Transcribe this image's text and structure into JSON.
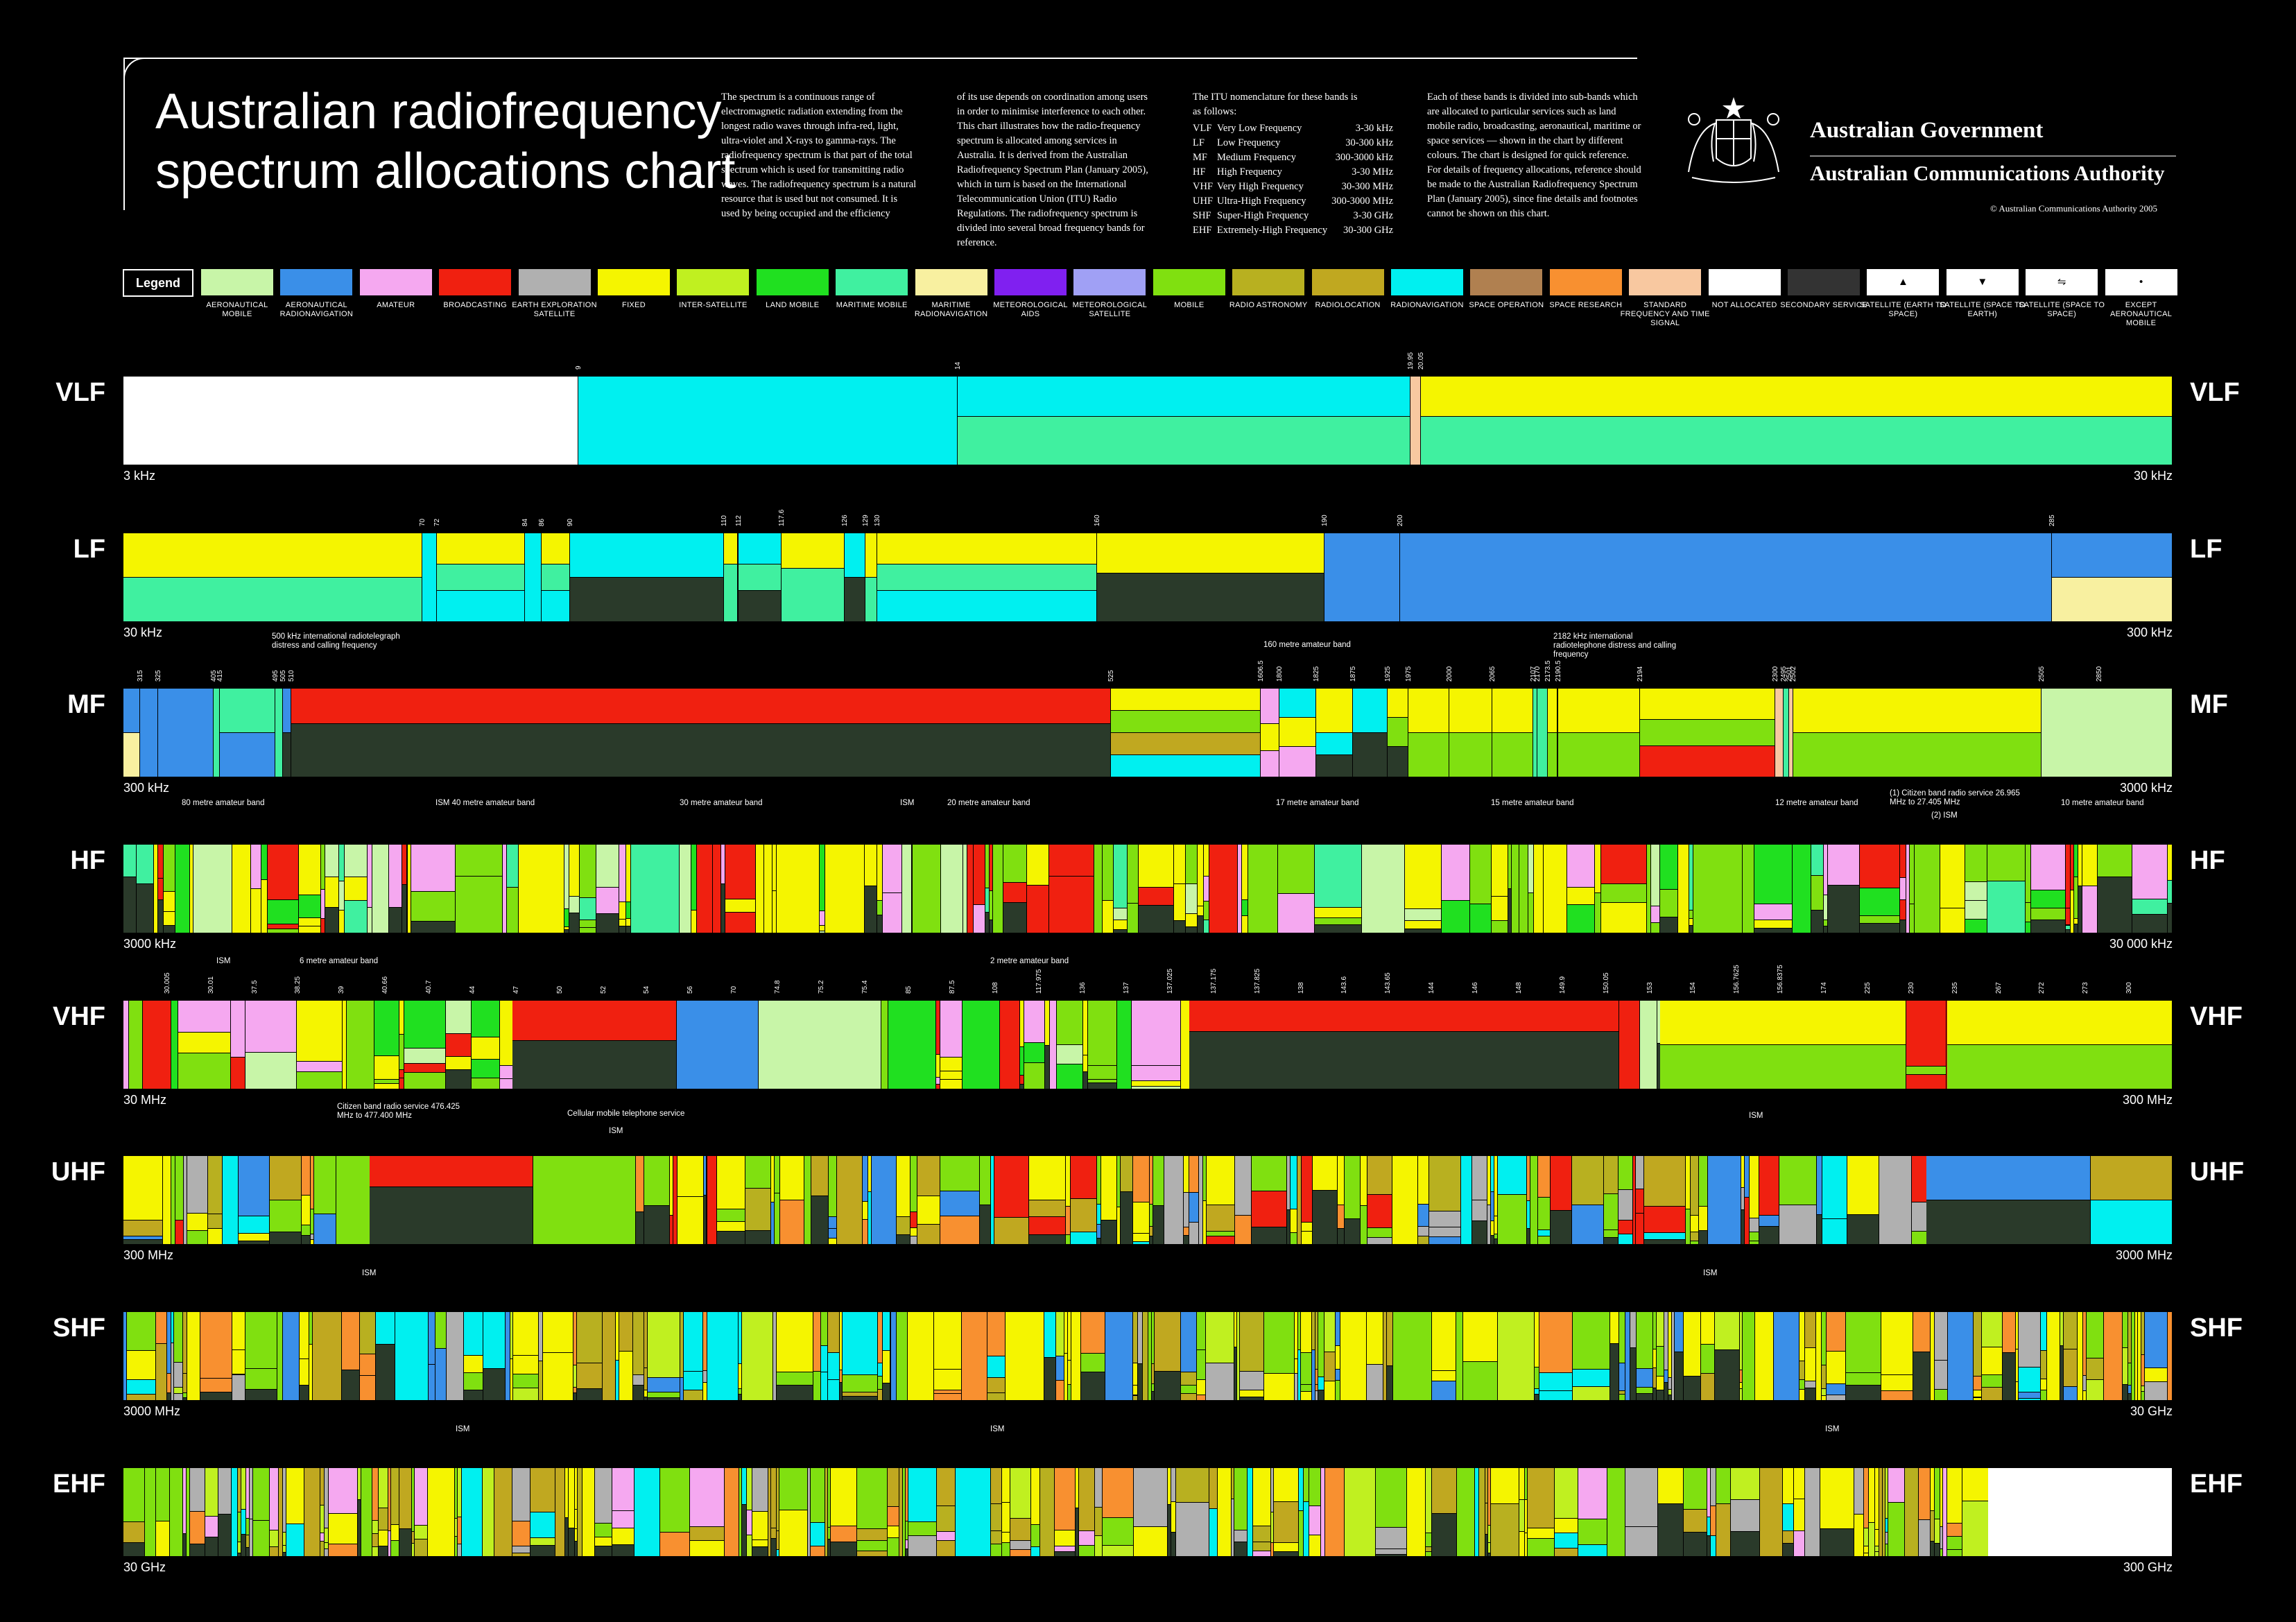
{
  "title": {
    "line1": "Australian radiofrequency",
    "line2": "spectrum allocations chart"
  },
  "intro": {
    "col1": "The spectrum is a continuous range of electromagnetic radiation extending from the longest radio waves through infra-red, light, ultra-violet and X-rays to gamma-rays. The radiofrequency spectrum is that part of the total spectrum which is used for transmitting radio waves. The radiofrequency spectrum is a natural resource that is used but not consumed. It is used by being occupied and the efficiency",
    "col2": "of its use depends on coordination among users in order to minimise interference to each other. This chart illustrates how the radio-frequency spectrum is allocated among services in Australia. It is derived from the Australian Radiofrequency Spectrum Plan (January 2005), which in turn is based on the International Telecommunication Union (ITU) Radio Regulations. The radiofrequency spectrum is divided into several broad frequency bands for reference.",
    "col3_heading": "The ITU nomenclature for these bands is as follows:",
    "col4": "Each of these bands is divided into sub-bands which are allocated to particular services such as land mobile radio, broadcasting, aeronautical, maritime or space services — shown in the chart by different colours. The chart is designed for quick reference. For details of frequency allocations, reference should be made to the Australian Radiofrequency Spectrum Plan (January 2005), since fine details and footnotes cannot be shown on this chart."
  },
  "itu_bands": [
    {
      "abbr": "VLF",
      "name": "Very Low Frequency",
      "range": "3-30 kHz"
    },
    {
      "abbr": "LF",
      "name": "Low Frequency",
      "range": "30-300 kHz"
    },
    {
      "abbr": "MF",
      "name": "Medium Frequency",
      "range": "300-3000 kHz"
    },
    {
      "abbr": "HF",
      "name": "High Frequency",
      "range": "3-30 MHz"
    },
    {
      "abbr": "VHF",
      "name": "Very High Frequency",
      "range": "30-300 MHz"
    },
    {
      "abbr": "UHF",
      "name": "Ultra-High Frequency",
      "range": "300-3000 MHz"
    },
    {
      "abbr": "SHF",
      "name": "Super-High Frequency",
      "range": "3-30 GHz"
    },
    {
      "abbr": "EHF",
      "name": "Extremely-High Frequency",
      "range": "30-300 GHz"
    }
  ],
  "government": {
    "line1": "Australian Government",
    "line2": "Australian Communications Authority",
    "copyright": "© Australian Communications Authority 2005"
  },
  "legend": {
    "label": "Legend",
    "items": [
      {
        "label": "AERONAUTICAL MOBILE",
        "color": "#c8f5a8"
      },
      {
        "label": "AERONAUTICAL RADIONAVIGATION",
        "color": "#3a8fe8"
      },
      {
        "label": "AMATEUR",
        "color": "#f5a8f0"
      },
      {
        "label": "BROADCASTING",
        "color": "#f02010"
      },
      {
        "label": "EARTH EXPLORATION SATELLITE",
        "color": "#b0b0b0"
      },
      {
        "label": "FIXED",
        "color": "#f5f500"
      },
      {
        "label": "INTER-SATELLITE",
        "color": "#c0f020"
      },
      {
        "label": "LAND MOBILE",
        "color": "#20e020"
      },
      {
        "label": "MARITIME MOBILE",
        "color": "#40f0a0"
      },
      {
        "label": "MARITIME RADIONAVIGATION",
        "color": "#f8f0a0"
      },
      {
        "label": "METEOROLOGICAL AIDS",
        "color": "#8020f0"
      },
      {
        "label": "METEOROLOGICAL SATELLITE",
        "color": "#a0a0f5"
      },
      {
        "label": "MOBILE",
        "color": "#80e010"
      },
      {
        "label": "RADIO ASTRONOMY",
        "color": "#b8b020"
      },
      {
        "label": "RADIOLOCATION",
        "color": "#c0a820"
      },
      {
        "label": "RADIONAVIGATION",
        "color": "#00f0f0"
      },
      {
        "label": "SPACE OPERATION",
        "color": "#b08050"
      },
      {
        "label": "SPACE RESEARCH",
        "color": "#f89030"
      },
      {
        "label": "STANDARD FREQUENCY AND TIME SIGNAL",
        "color": "#f8c8a0"
      },
      {
        "label": "NOT ALLOCATED",
        "color": "#ffffff"
      },
      {
        "label": "SECONDARY SERVICE",
        "color": "#333333"
      },
      {
        "label": "SATELLITE (EARTH TO SPACE)",
        "color": "#ffffff",
        "symbol": "▲"
      },
      {
        "label": "SATELLITE (SPACE TO EARTH)",
        "color": "#ffffff",
        "symbol": "▼"
      },
      {
        "label": "SATELLITE (SPACE TO SPACE)",
        "color": "#ffffff",
        "symbol": "⇋"
      },
      {
        "label": "EXCEPT AERONAUTICAL MOBILE",
        "color": "#ffffff",
        "symbol": "•"
      }
    ]
  },
  "bands": [
    {
      "name": "VLF",
      "start": "3 kHz",
      "end": "30 kHz"
    },
    {
      "name": "LF",
      "start": "30 kHz",
      "end": "300 kHz"
    },
    {
      "name": "MF",
      "start": "300 kHz",
      "end": "3000 kHz"
    },
    {
      "name": "HF",
      "start": "3000 kHz",
      "end": "30 000 kHz"
    },
    {
      "name": "VHF",
      "start": "30 MHz",
      "end": "300 MHz"
    },
    {
      "name": "UHF",
      "start": "300 MHz",
      "end": "3000 MHz"
    },
    {
      "name": "SHF",
      "start": "3000 MHz",
      "end": "30 GHz"
    },
    {
      "name": "EHF",
      "start": "30 GHz",
      "end": "300 GHz"
    }
  ],
  "annotations": {
    "mf_500": "500 kHz international radiotelegraph distress and calling frequency",
    "mf_160": "160 metre amateur band",
    "mf_2182": "2182 kHz international radiotelephone distress and calling frequency",
    "hf_80": "80 metre amateur band",
    "hf_ism40": "ISM 40 metre amateur band",
    "hf_30": "30 metre amateur band",
    "hf_ism": "ISM",
    "hf_20": "20 metre amateur band",
    "hf_17": "17 metre amateur band",
    "hf_15": "15 metre amateur band",
    "hf_12": "12 metre amateur band",
    "hf_cb": "(1) Citizen band radio service 26.965 MHz to 27.405 MHz",
    "hf_cb2": "(2) ISM",
    "hf_10": "10 metre amateur band",
    "vhf_ism": "ISM",
    "vhf_6": "6 metre amateur band",
    "vhf_2": "2 metre amateur band",
    "uhf_cb": "Citizen band radio service 476.425 MHz to 477.400 MHz",
    "uhf_cell": "Cellular mobile telephone service",
    "uhf_ism": "ISM",
    "uhf_ism2": "ISM",
    "shf_ism": "ISM",
    "shf_ism2": "ISM",
    "ehf_ism": "ISM",
    "ehf_ism2": "ISM",
    "ehf_ism3": "ISM"
  },
  "tick_labels": {
    "VLF": [
      "9",
      "14",
      "19.95",
      "20.05"
    ],
    "LF": [
      "70",
      "72",
      "84",
      "86",
      "90",
      "110",
      "112",
      "117.6",
      "126",
      "129",
      "130",
      "160",
      "190",
      "200",
      "285"
    ],
    "MF": [
      "315",
      "325",
      "405",
      "415",
      "495",
      "505",
      "510",
      "525",
      "1606.5",
      "1800",
      "1825",
      "1875",
      "1925",
      "1975",
      "2000",
      "2065",
      "2107",
      "2170",
      "2173.5",
      "2190.5",
      "2194",
      "2300",
      "2495",
      "2501",
      "2502",
      "2505",
      "2850"
    ],
    "VHF": [
      "30.005",
      "30.01",
      "37.5",
      "38.25",
      "39",
      "40.66",
      "40.7",
      "44",
      "47",
      "50",
      "52",
      "54",
      "56",
      "70",
      "74.8",
      "75.2",
      "75.4",
      "85",
      "87.5",
      "108",
      "117.975",
      "136",
      "137",
      "137.025",
      "137.175",
      "137.825",
      "138",
      "143.6",
      "143.65",
      "144",
      "146",
      "148",
      "149.9",
      "150.05",
      "153",
      "154",
      "156.7625",
      "156.8375",
      "174",
      "225",
      "230",
      "235",
      "267",
      "272",
      "273",
      "300"
    ]
  }
}
